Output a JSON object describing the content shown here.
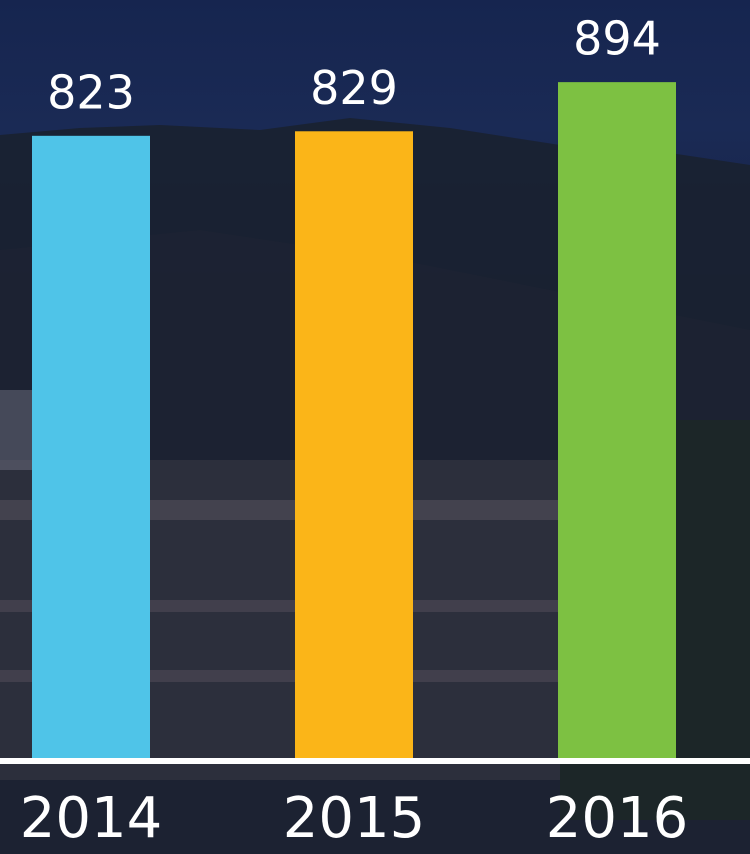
{
  "chart_data": {
    "type": "bar",
    "categories": [
      "2014",
      "2015",
      "2016"
    ],
    "values": [
      823,
      829,
      894
    ],
    "colors": [
      "#4fc4e8",
      "#fbb518",
      "#7dc142"
    ],
    "ylim": [
      0,
      1000
    ]
  }
}
